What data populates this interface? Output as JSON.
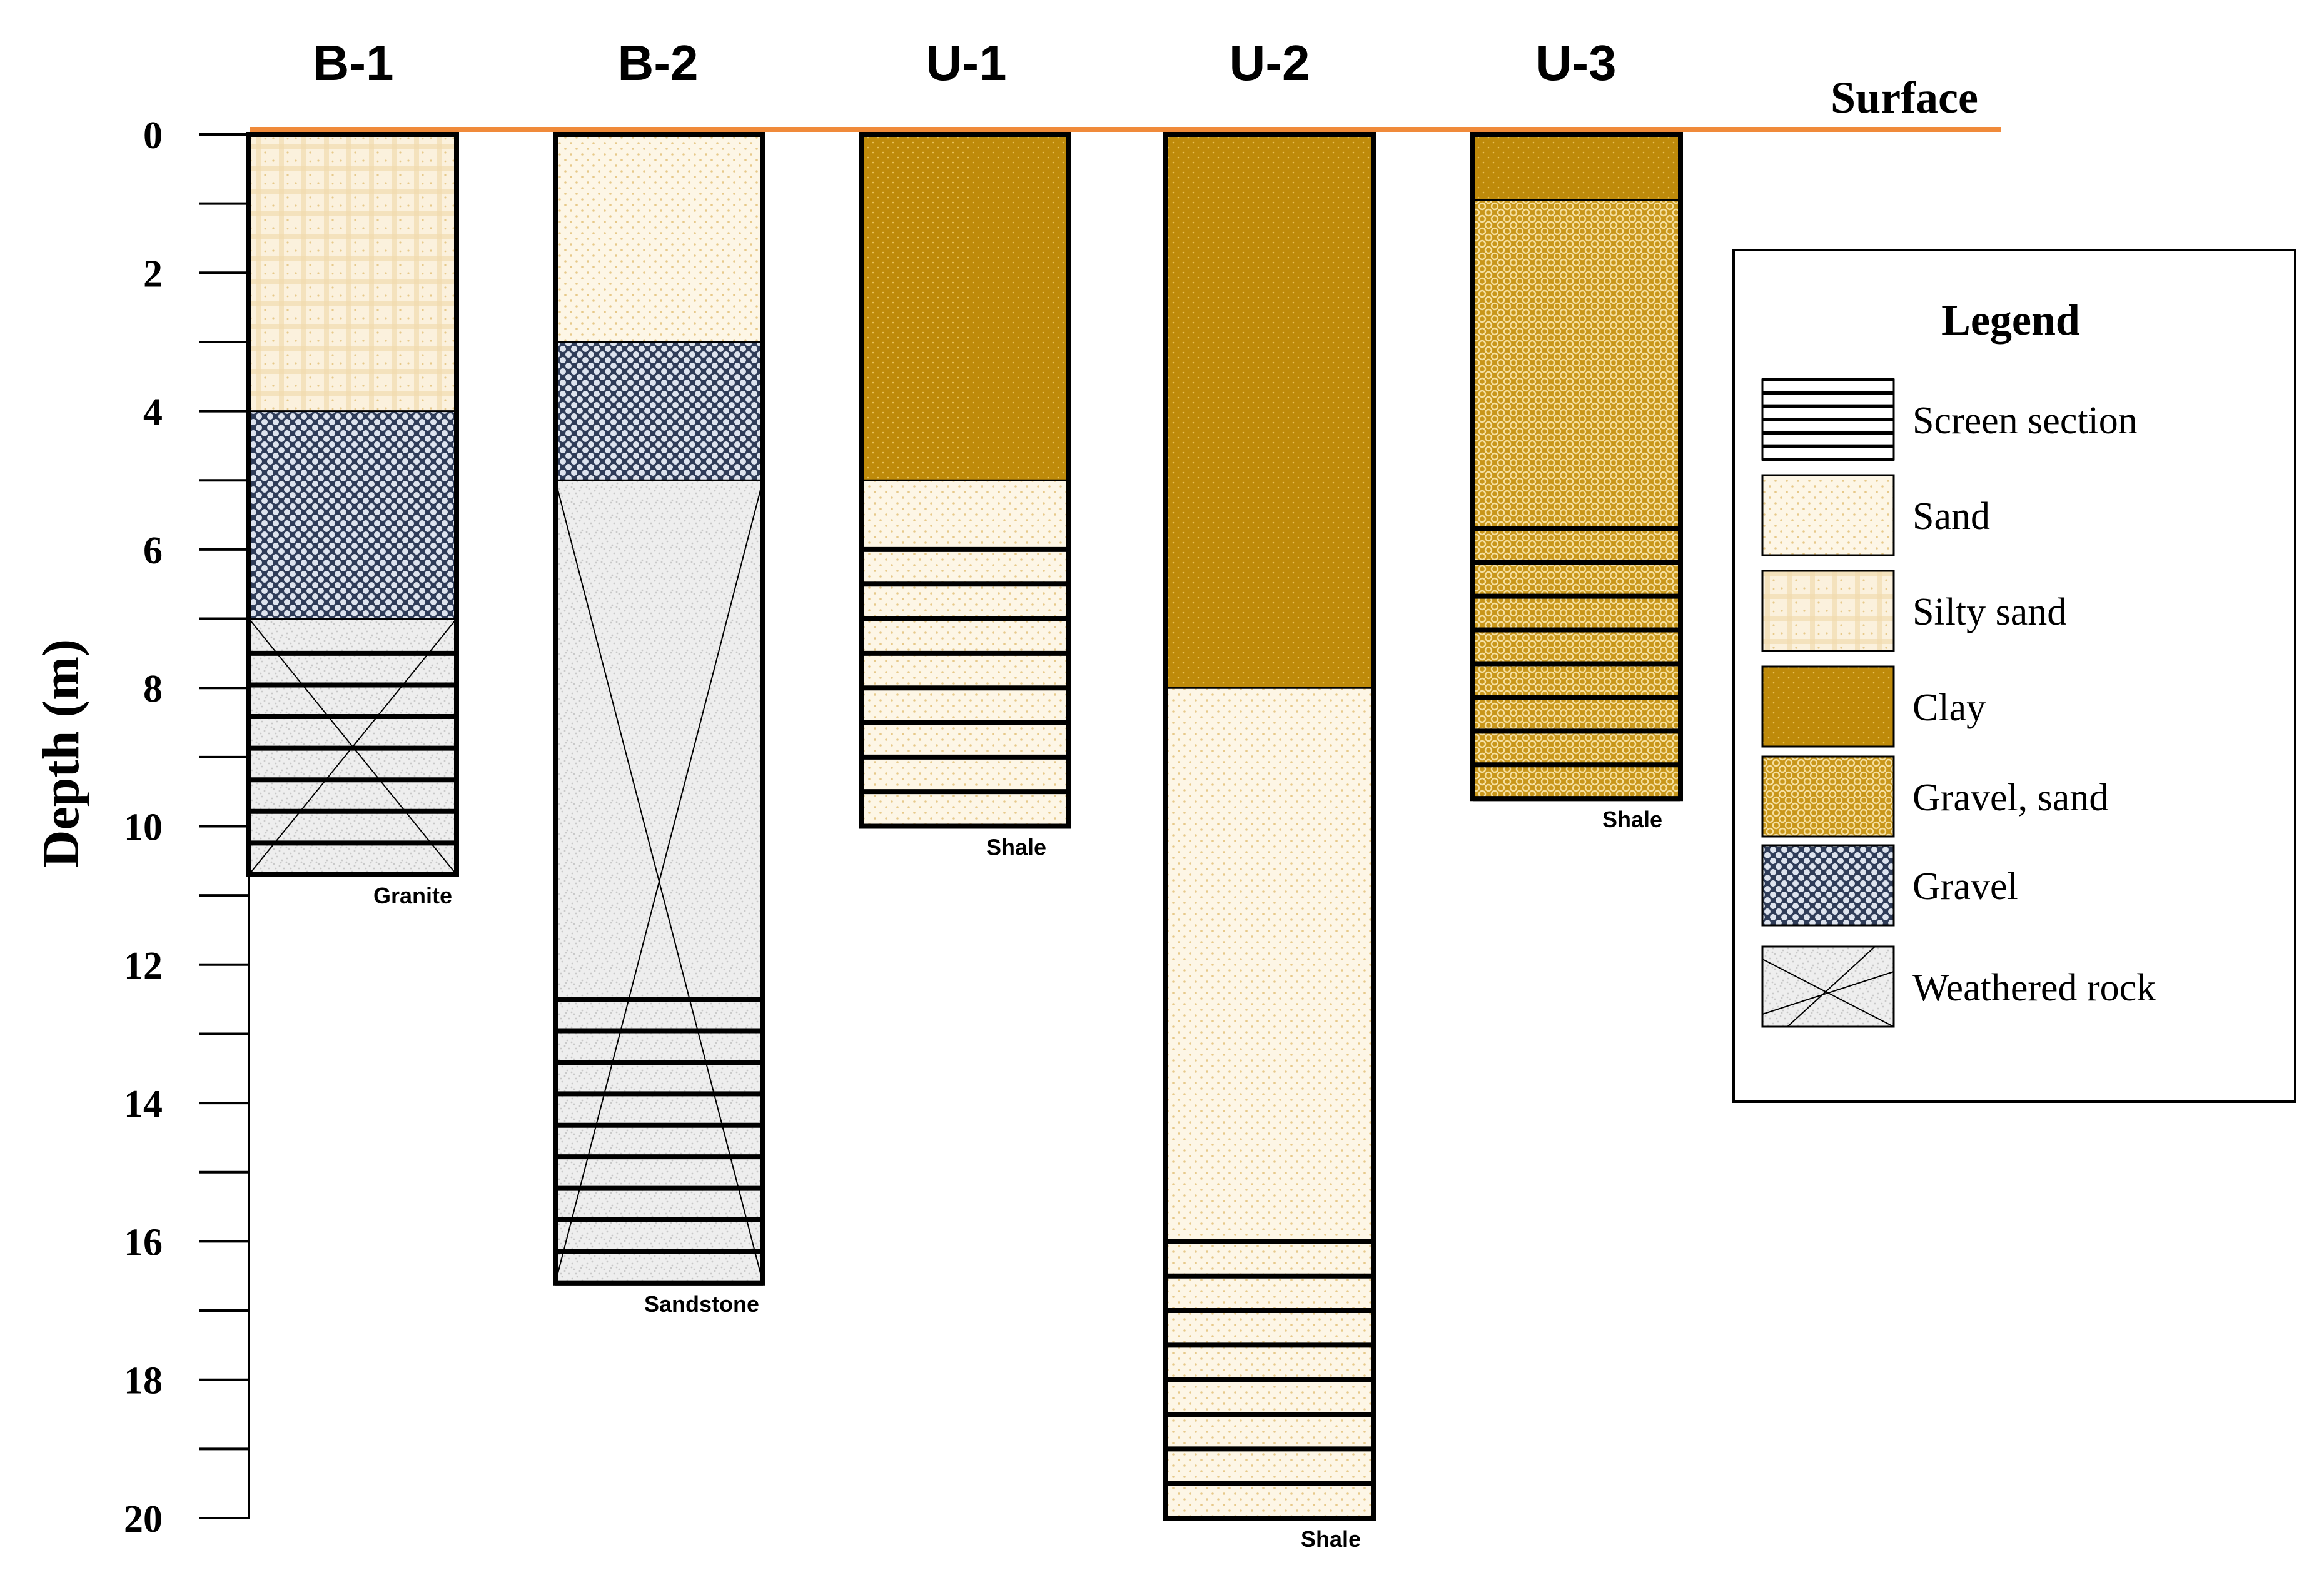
{
  "diagram": {
    "surface_label": "Surface",
    "y_axis_label": "Depth (m)",
    "y_ticks": [
      "0",
      "2",
      "4",
      "6",
      "8",
      "10",
      "12",
      "14",
      "16",
      "18",
      "20"
    ],
    "depth_range_m": [
      0,
      20
    ],
    "minor_tick_step_m": 1
  },
  "colors": {
    "surface_line": "#f08a3a",
    "sand_base": "#fdf6e6",
    "sand_dot": "#e7c98a",
    "silty_base": "#fbf1dd",
    "silty_grid": "#f2dcb0",
    "clay": "#be8a0a",
    "clay_dot": "#e9c25a",
    "gravel_sand_base": "#c8961a",
    "gravel_sand_mesh": "#f6e0a0",
    "gravel_base": "#2f3c58",
    "gravel_dot": "#dde3ee",
    "rock_base": "#eeeeee",
    "rock_speckle": "#c9c9c9",
    "outline": "#000000"
  },
  "legend": {
    "title": "Legend",
    "items": [
      {
        "key": "screen",
        "label": "Screen section"
      },
      {
        "key": "sand",
        "label": "Sand"
      },
      {
        "key": "silty",
        "label": "Silty sand"
      },
      {
        "key": "clay",
        "label": "Clay"
      },
      {
        "key": "gravelsand",
        "label": "Gravel, sand"
      },
      {
        "key": "gravel",
        "label": "Gravel"
      },
      {
        "key": "rock",
        "label": "Weathered rock"
      }
    ]
  },
  "boreholes": [
    {
      "name": "B-1",
      "bottom_label": "Granite",
      "total_depth_m": 10.7,
      "layers": [
        {
          "material": "silty",
          "top_m": 0,
          "bottom_m": 4
        },
        {
          "material": "gravel",
          "top_m": 4,
          "bottom_m": 7
        },
        {
          "material": "rock",
          "top_m": 7,
          "bottom_m": 10.7
        }
      ],
      "screen_m": [
        7.5,
        10.7
      ]
    },
    {
      "name": "B-2",
      "bottom_label": "Sandstone",
      "total_depth_m": 16.6,
      "layers": [
        {
          "material": "sand",
          "top_m": 0,
          "bottom_m": 3
        },
        {
          "material": "gravel",
          "top_m": 3,
          "bottom_m": 5
        },
        {
          "material": "rock",
          "top_m": 5,
          "bottom_m": 16.6
        }
      ],
      "screen_m": [
        12.5,
        16.6
      ]
    },
    {
      "name": "U-1",
      "bottom_label": "Shale",
      "total_depth_m": 10,
      "layers": [
        {
          "material": "clay",
          "top_m": 0,
          "bottom_m": 5
        },
        {
          "material": "sand",
          "top_m": 5,
          "bottom_m": 10
        }
      ],
      "screen_m": [
        6,
        10
      ]
    },
    {
      "name": "U-2",
      "bottom_label": "Shale",
      "total_depth_m": 20,
      "layers": [
        {
          "material": "clay",
          "top_m": 0,
          "bottom_m": 8
        },
        {
          "material": "sand",
          "top_m": 8,
          "bottom_m": 20
        }
      ],
      "screen_m": [
        16,
        20
      ]
    },
    {
      "name": "U-3",
      "bottom_label": "Shale",
      "total_depth_m": 9.6,
      "layers": [
        {
          "material": "clay",
          "top_m": 0,
          "bottom_m": 0.95
        },
        {
          "material": "gravelsand",
          "top_m": 0.95,
          "bottom_m": 9.6
        }
      ],
      "screen_m": [
        5.7,
        9.6
      ]
    }
  ]
}
